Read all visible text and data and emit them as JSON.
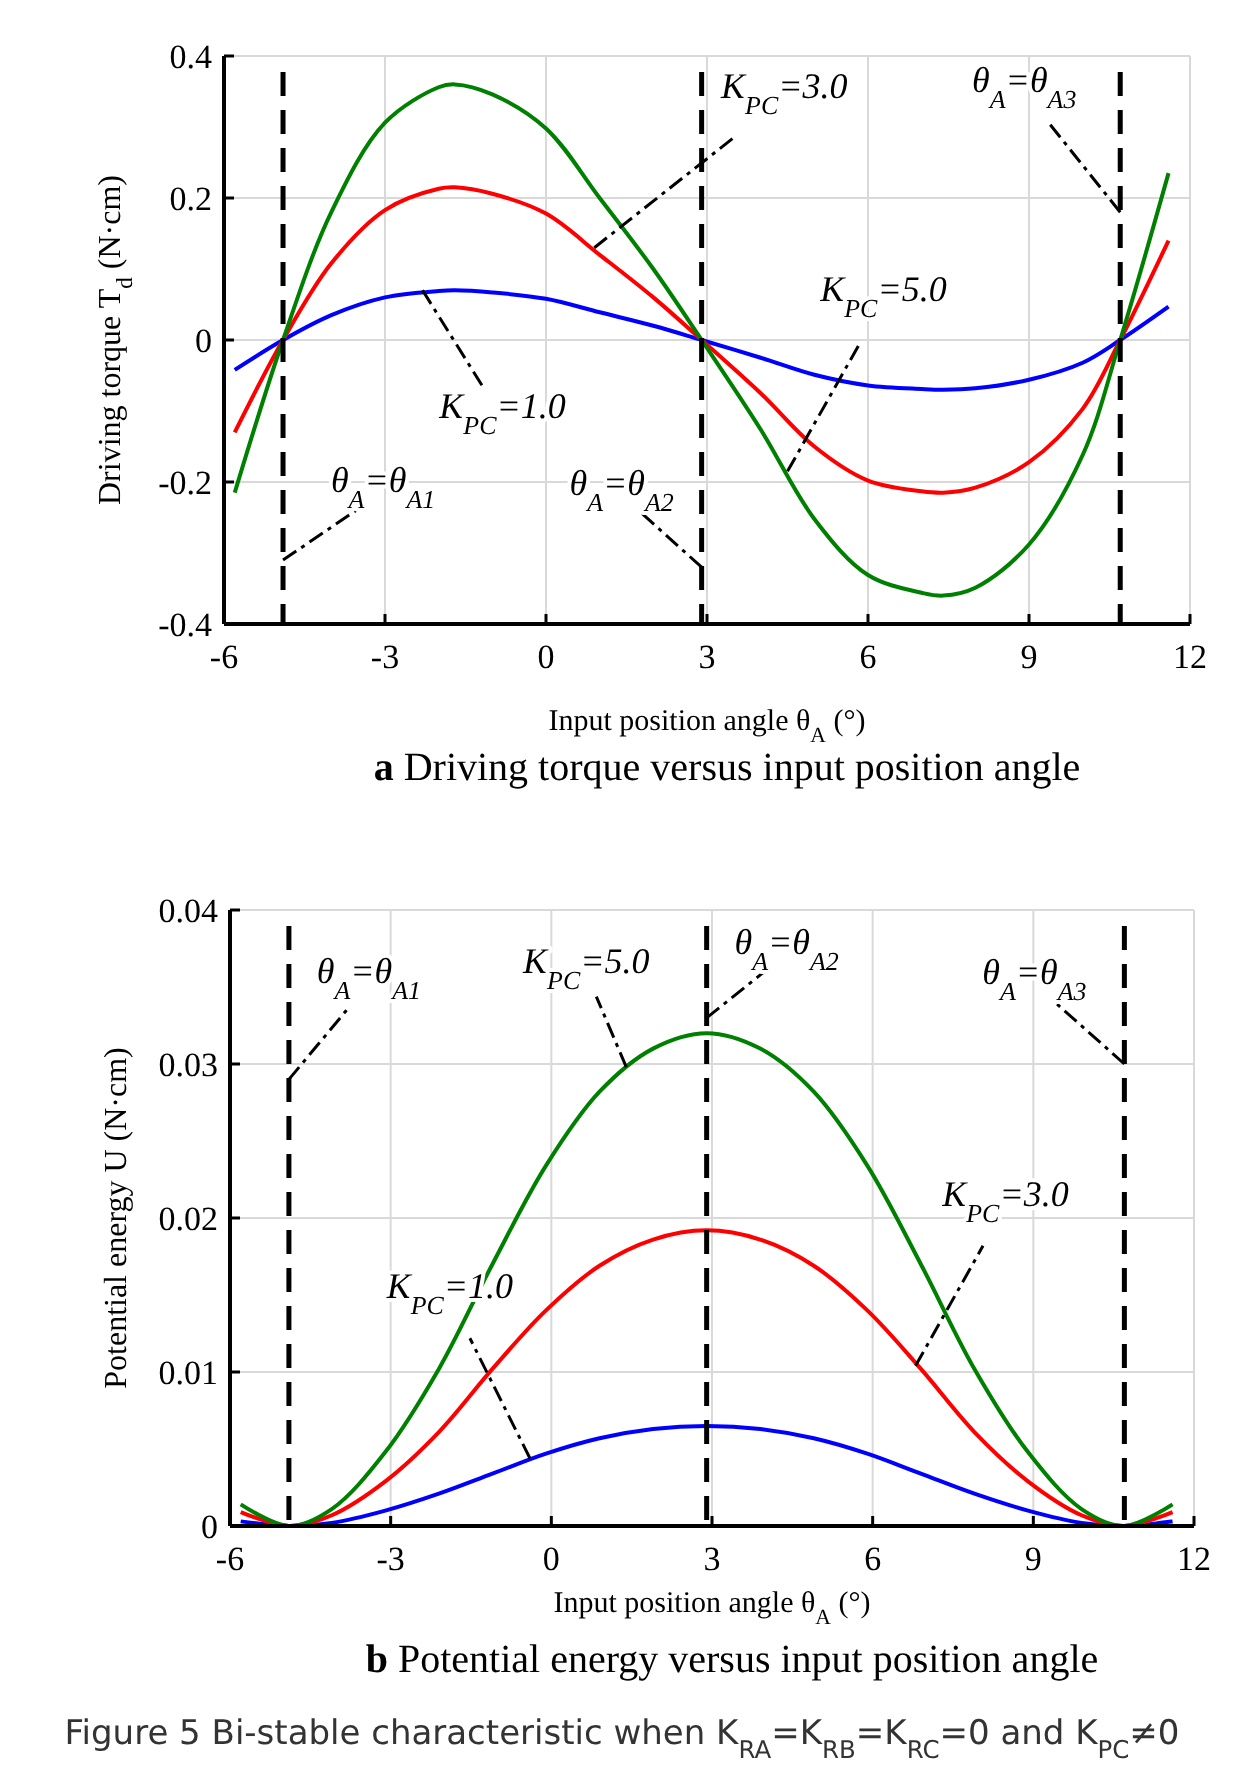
{
  "chart_data": [
    {
      "type": "line",
      "title": "a Driving torque versus input position angle",
      "xlabel": "Input position angle θ$_{A}$ (°)",
      "ylabel": "Driving torque T$_{d}$ (N·cm)",
      "xlim": [
        -6,
        12
      ],
      "xticks": [
        -6,
        -3,
        0,
        3,
        6,
        9,
        12
      ],
      "ylim": [
        -0.4,
        0.4
      ],
      "yticks": [
        -0.4,
        -0.2,
        0,
        0.2,
        0.4
      ],
      "grid": true,
      "line_style": "solid",
      "x": [
        -5.8,
        -4.9,
        -4,
        -3,
        -2,
        -1.7,
        -1,
        0,
        1,
        2,
        2.9,
        4,
        5,
        6,
        7,
        7.4,
        8,
        9,
        10,
        10.7,
        11.6
      ],
      "series": [
        {
          "color": "#0000ff",
          "values": [
            -0.042,
            0,
            0.035,
            0.06,
            0.069,
            0.07,
            0.067,
            0.058,
            0.039,
            0.02,
            0,
            -0.025,
            -0.049,
            -0.064,
            -0.069,
            -0.07,
            -0.068,
            -0.056,
            -0.032,
            0,
            0.047
          ]
        },
        {
          "color": "#ff0000",
          "values": [
            -0.13,
            0,
            0.108,
            0.183,
            0.213,
            0.215,
            0.206,
            0.178,
            0.12,
            0.06,
            0,
            -0.075,
            -0.15,
            -0.198,
            -0.213,
            -0.215,
            -0.208,
            -0.172,
            -0.097,
            0,
            0.14
          ]
        },
        {
          "color": "#008000",
          "values": [
            -0.215,
            0,
            0.18,
            0.306,
            0.356,
            0.36,
            0.346,
            0.298,
            0.2,
            0.1,
            0,
            -0.126,
            -0.252,
            -0.331,
            -0.356,
            -0.36,
            -0.349,
            -0.288,
            -0.162,
            0,
            0.235
          ]
        }
      ],
      "ref_lines": [
        {
          "axis": "x",
          "value": -4.9,
          "line_style": "dashed",
          "color": "#000000"
        },
        {
          "axis": "x",
          "value": 2.9,
          "line_style": "dashed",
          "color": "#000000"
        },
        {
          "axis": "x",
          "value": 10.7,
          "line_style": "dashed",
          "color": "#000000"
        }
      ],
      "annotations": [
        {
          "text": "θ$_{A}$=θ$_{A1}$",
          "x": -4.9,
          "y": -0.31
        },
        {
          "text": "θ$_{A}$=θ$_{A2}$",
          "x": 2.9,
          "y": -0.32
        },
        {
          "text": "θ$_{A}$=θ$_{A3}$",
          "x": 10.7,
          "y": 0.18
        },
        {
          "text": "K$_{PC}$=1.0",
          "x": -2.3,
          "y": 0.07
        },
        {
          "text": "K$_{PC}$=3.0",
          "x": 0.9,
          "y": 0.13
        },
        {
          "text": "K$_{PC}$=5.0",
          "x": 4.5,
          "y": -0.185
        }
      ]
    },
    {
      "type": "line",
      "title": "b Potential energy versus input position angle",
      "xlabel": "Input position angle θ$_{A}$ (°)",
      "ylabel": "Potential energy U (N·cm)",
      "xlim": [
        -6,
        12
      ],
      "xticks": [
        -6,
        -3,
        0,
        3,
        6,
        9,
        12
      ],
      "ylim": [
        0,
        0.04
      ],
      "yticks": [
        0,
        0.01,
        0.02,
        0.03,
        0.04
      ],
      "grid": true,
      "line_style": "solid",
      "x": [
        -5.8,
        -4.9,
        -4.1,
        -3.1,
        -2.1,
        -1.1,
        -0.1,
        0.9,
        1.9,
        2.9,
        3.9,
        4.9,
        5.9,
        6.9,
        7.9,
        8.9,
        9.9,
        10.7,
        11.6
      ],
      "series": [
        {
          "color": "#0000ff",
          "values": [
            0.0003,
            0,
            0.0002,
            0.001,
            0.0021,
            0.0034,
            0.0047,
            0.0057,
            0.0063,
            0.0065,
            0.0063,
            0.0057,
            0.0047,
            0.0034,
            0.0021,
            0.001,
            0.0002,
            0,
            0.0003
          ]
        },
        {
          "color": "#ff0000",
          "values": [
            0.0009,
            0,
            0.0007,
            0.0029,
            0.0061,
            0.0102,
            0.014,
            0.0169,
            0.0186,
            0.0192,
            0.0186,
            0.0169,
            0.014,
            0.0102,
            0.0061,
            0.0029,
            0.0007,
            0,
            0.0009
          ]
        },
        {
          "color": "#008000",
          "values": [
            0.0014,
            0,
            0.0011,
            0.0048,
            0.0102,
            0.017,
            0.0234,
            0.0282,
            0.031,
            0.032,
            0.031,
            0.0282,
            0.0234,
            0.017,
            0.0102,
            0.0048,
            0.0011,
            0,
            0.0014
          ]
        }
      ],
      "ref_lines": [
        {
          "axis": "x",
          "value": -4.9,
          "line_style": "dashed",
          "color": "#000000"
        },
        {
          "axis": "x",
          "value": 2.9,
          "line_style": "dashed",
          "color": "#000000"
        },
        {
          "axis": "x",
          "value": 10.7,
          "line_style": "dashed",
          "color": "#000000"
        }
      ],
      "annotations": [
        {
          "text": "θ$_{A}$=θ$_{A1}$",
          "x": -4.9,
          "y": 0.029
        },
        {
          "text": "θ$_{A}$=θ$_{A2}$",
          "x": 2.9,
          "y": 0.033
        },
        {
          "text": "θ$_{A}$=θ$_{A3}$",
          "x": 10.7,
          "y": 0.03
        },
        {
          "text": "K$_{PC}$=1.0",
          "x": -0.4,
          "y": 0.0044
        },
        {
          "text": "K$_{PC}$=3.0",
          "x": 6.8,
          "y": 0.0104
        },
        {
          "text": "K$_{PC}$=5.0",
          "x": 1.4,
          "y": 0.0298
        },
        "Figure 5 Bi-stable characteristic when K$_{RA}$=K$_{RB}$=K$_{RC}$=0 and K$_{PC}$≠0"
      ]
    }
  ]
}
